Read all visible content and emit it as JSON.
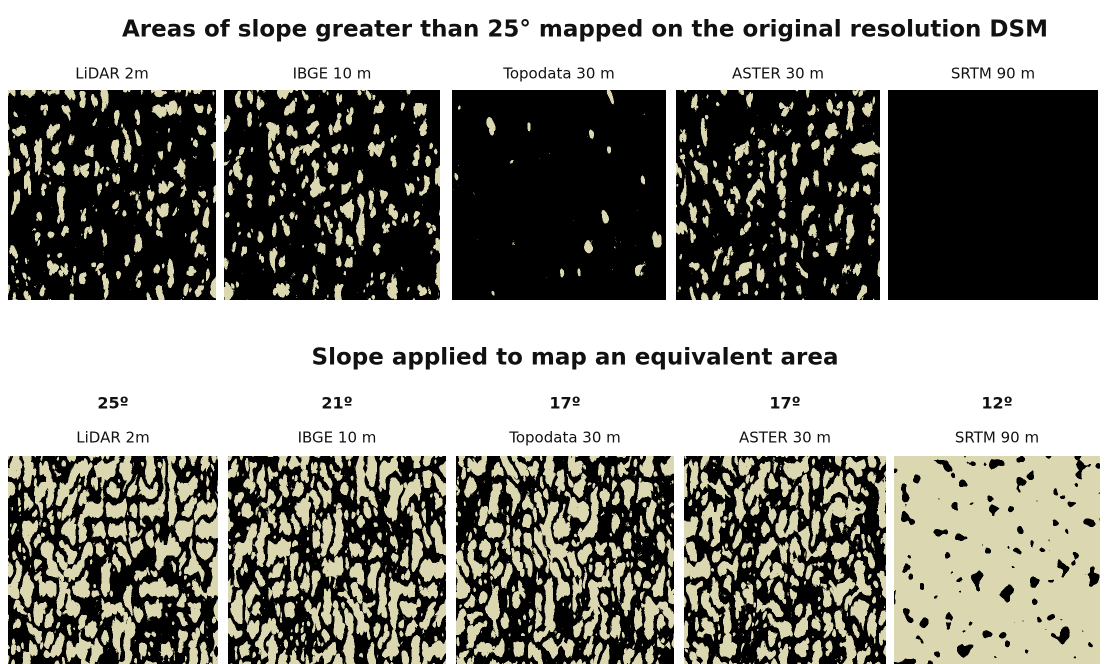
{
  "header": {
    "title": "Areas of slope greater than 25° mapped on the original resolution DSM"
  },
  "top_row": {
    "panels": [
      {
        "label": "LiDAR 2m"
      },
      {
        "label": "IBGE 10 m"
      },
      {
        "label": "Topodata 30 m"
      },
      {
        "label": "ASTER 30 m"
      },
      {
        "label": "SRTM 90 m"
      }
    ]
  },
  "bottom_row": {
    "title": "Slope applied to map an equivalent area",
    "panels": [
      {
        "slope": "25º",
        "label": "LiDAR 2m"
      },
      {
        "slope": "21º",
        "label": "IBGE 10 m"
      },
      {
        "slope": "17º",
        "label": "Topodata 30 m"
      },
      {
        "slope": "17º",
        "label": "ASTER 30 m"
      },
      {
        "slope": "12º",
        "label": "SRTM 90 m"
      }
    ]
  }
}
